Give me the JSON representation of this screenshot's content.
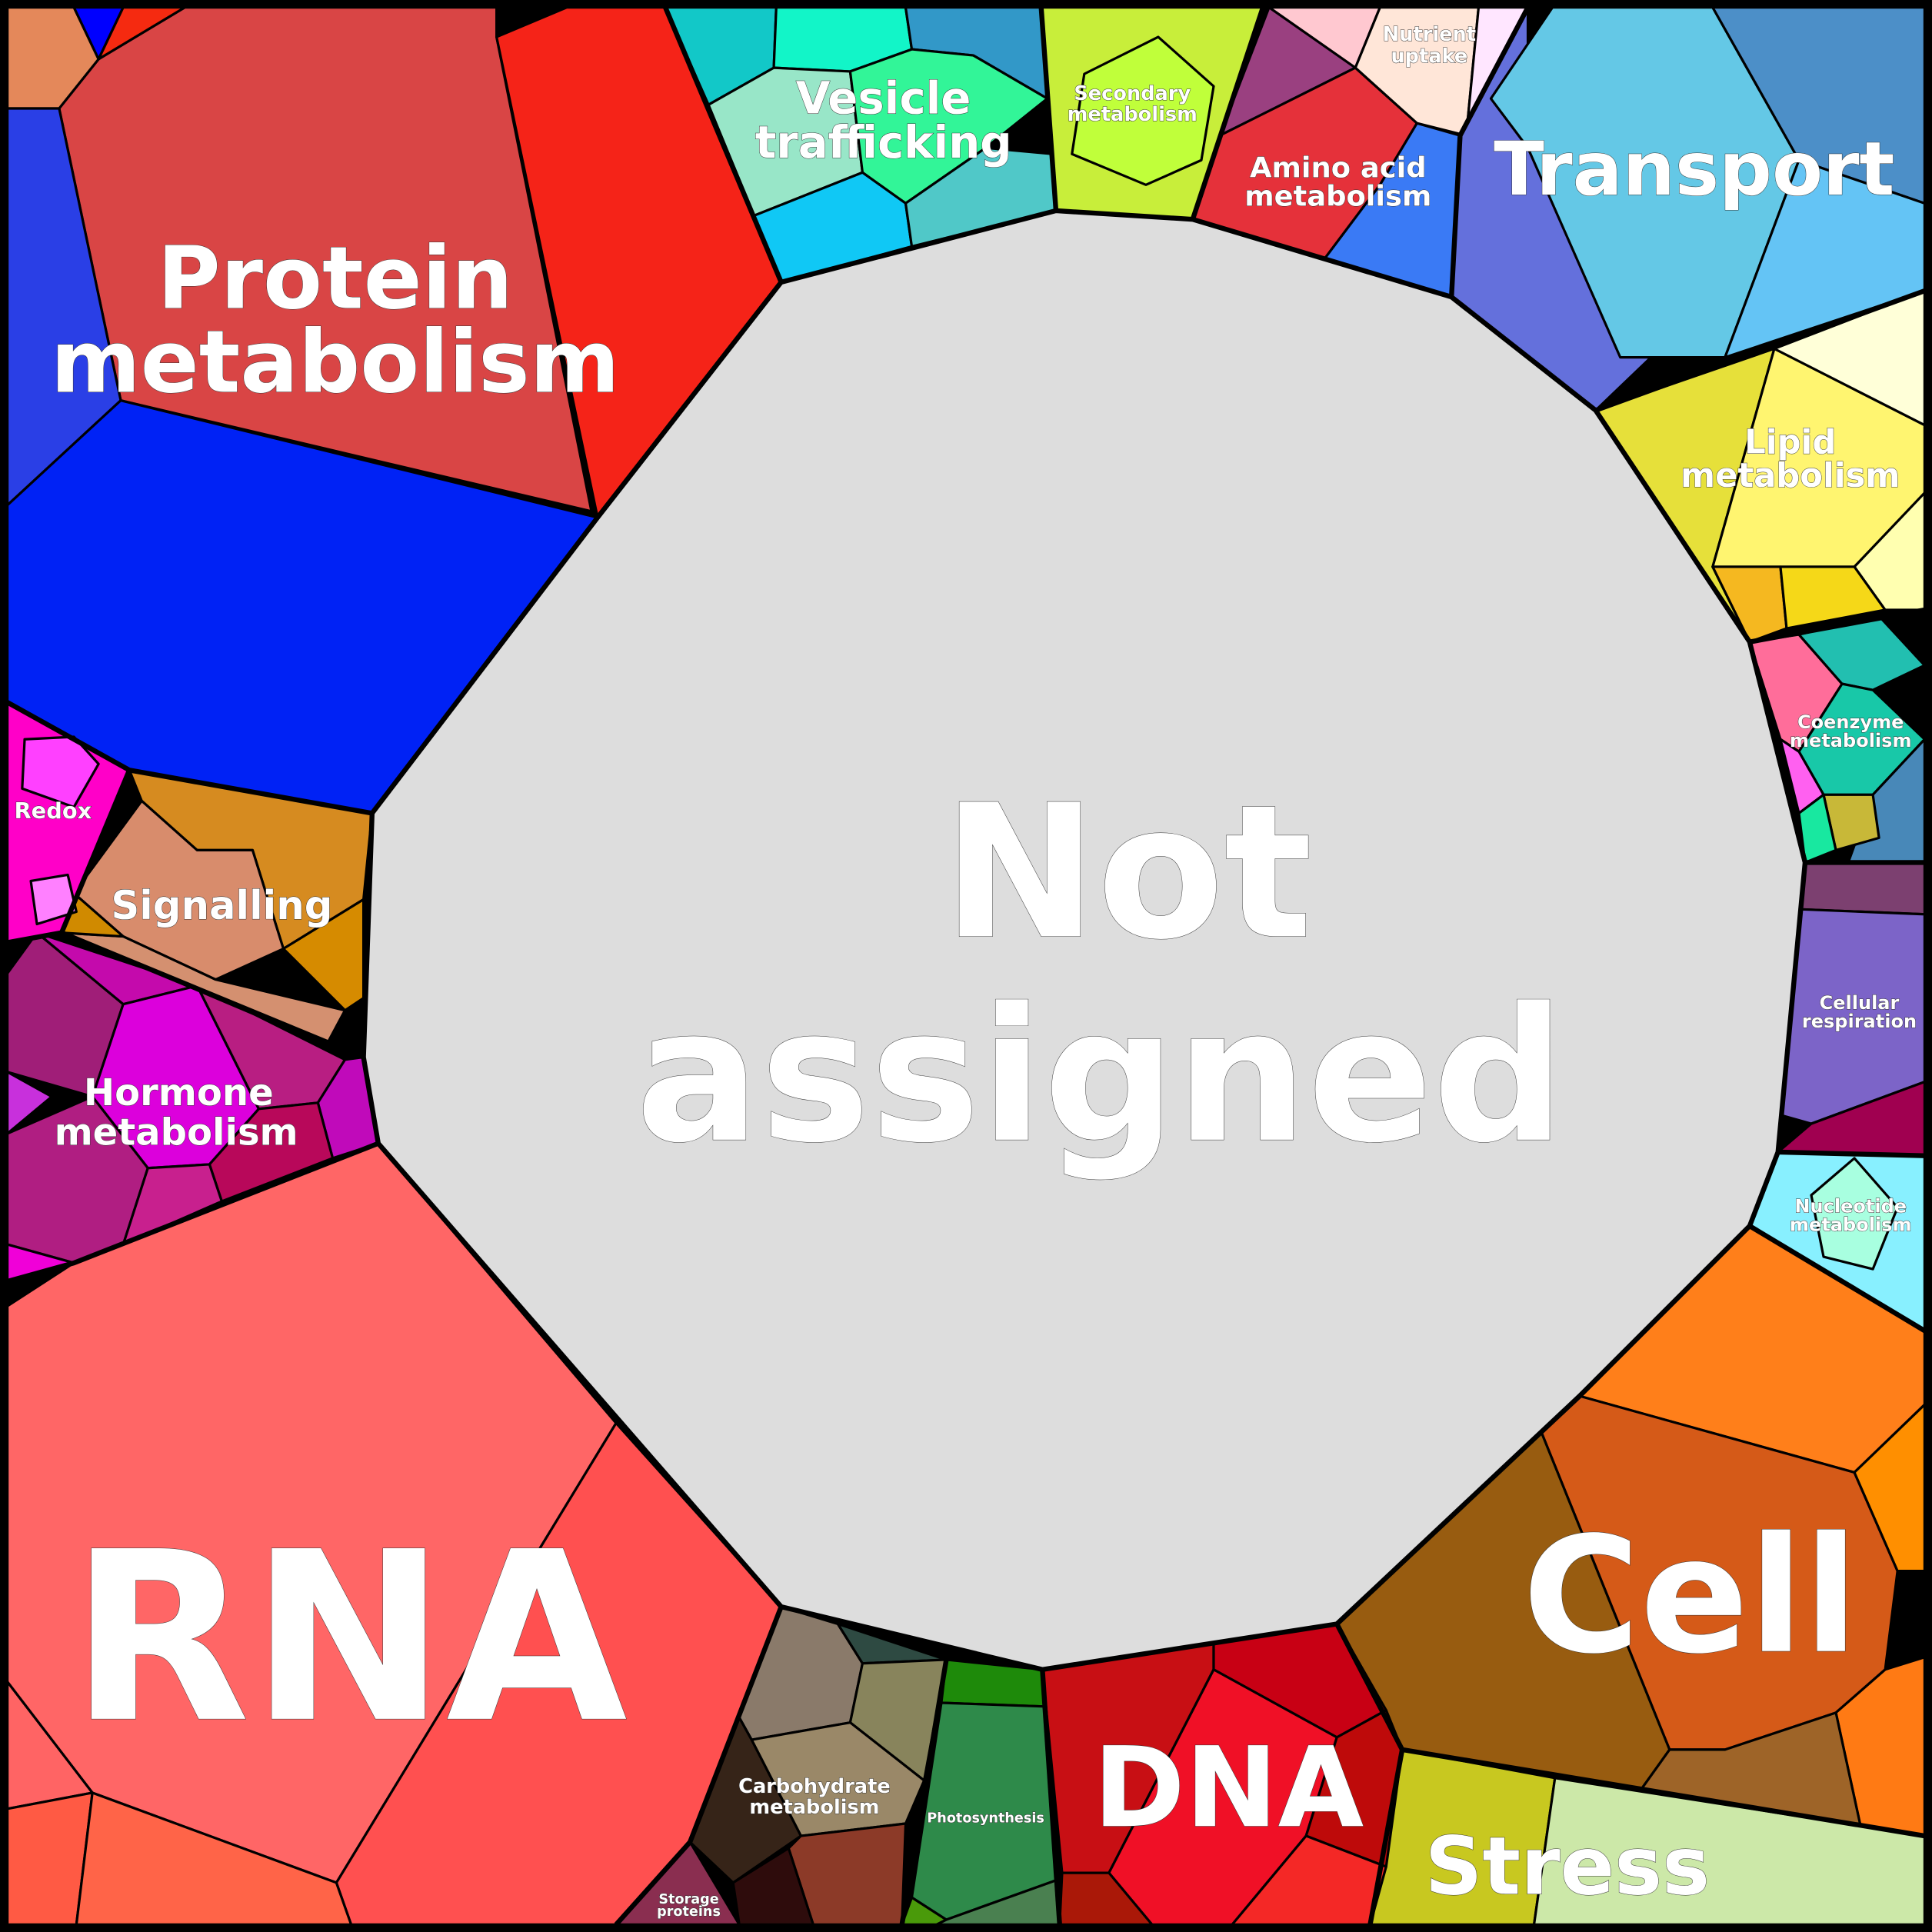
{
  "regions": [
    {
      "lines": [
        "Not",
        "assigned"
      ]
    },
    {
      "lines": [
        "Protein",
        "metabolism"
      ]
    },
    {
      "lines": [
        "Vesicle",
        "trafficking"
      ]
    },
    {
      "lines": [
        "Secondary",
        "metabolism"
      ]
    },
    {
      "lines": [
        "Nutrient",
        "uptake"
      ]
    },
    {
      "lines": [
        "Amino acid",
        "metabolism"
      ]
    },
    {
      "lines": [
        "Transport"
      ]
    },
    {
      "lines": [
        "Lipid",
        "metabolism"
      ]
    },
    {
      "lines": [
        "Coenzyme",
        "metabolism"
      ]
    },
    {
      "lines": [
        "Cellular",
        "respiration"
      ]
    },
    {
      "lines": [
        "Nucleotide",
        "metabolism"
      ]
    },
    {
      "lines": [
        "Cell"
      ]
    },
    {
      "lines": [
        "Stress"
      ]
    },
    {
      "lines": [
        "DNA"
      ]
    },
    {
      "lines": [
        "Photosynthesis"
      ]
    },
    {
      "lines": [
        "Carbohydrate",
        "metabolism"
      ]
    },
    {
      "lines": [
        "Storage",
        "proteins"
      ]
    },
    {
      "lines": [
        "RNA"
      ]
    },
    {
      "lines": [
        "Hormone",
        "metabolism"
      ]
    },
    {
      "lines": [
        "Signalling"
      ]
    },
    {
      "lines": [
        "Redox"
      ]
    }
  ]
}
